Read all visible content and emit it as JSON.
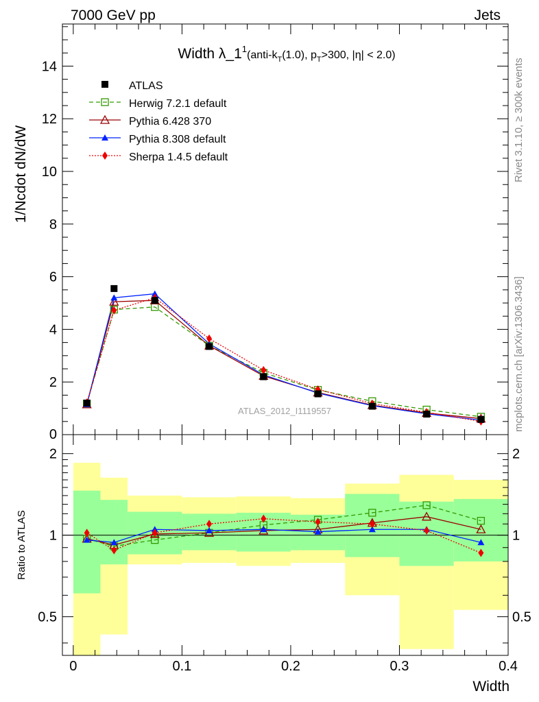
{
  "header": {
    "left": "7000 GeV pp",
    "right": "Jets"
  },
  "side_labels": {
    "rivet": "Rivet 3.1.10, ≥ 300k events",
    "mcplots": "mcplots.cern.ch [arXiv:1306.3436]"
  },
  "chart_data": {
    "type": "line",
    "title": {
      "main": "Width λ_1",
      "sup": "1",
      "paren_open": "(anti-k",
      "sub_t": "T",
      "jet_r": "(1.0), p",
      "sub_pt": "T",
      "cut": ">300, |η| < 2.0)"
    },
    "xlabel": "Width",
    "ylabel_main": "1/Ncdot dN/dW",
    "ylabel_ratio": "Ratio to ATLAS",
    "analysis_id": "ATLAS_2012_I1119557",
    "xlim": [
      -0.01,
      0.4
    ],
    "ylim_main": [
      0,
      15.6
    ],
    "ylim_ratio_log": [
      0.36,
      2.35
    ],
    "x_ticks": [
      0,
      0.1,
      0.2,
      0.3,
      0.4
    ],
    "x_tick_labels": [
      "0",
      "0.1",
      "0.2",
      "0.3",
      "0.4"
    ],
    "y_ticks_main": [
      2,
      4,
      6,
      8,
      10,
      12,
      14
    ],
    "y_tick_labels_main": [
      "2",
      "4",
      "6",
      "8",
      "10",
      "12",
      "14"
    ],
    "y_zero_label": "0",
    "y_ticks_ratio": [
      0.5,
      1,
      2
    ],
    "y_tick_labels_ratio": [
      "0.5",
      "1",
      "2"
    ],
    "bin_edges": [
      0,
      0.025,
      0.05,
      0.1,
      0.15,
      0.2,
      0.25,
      0.3,
      0.35,
      0.4
    ],
    "x": [
      0.0125,
      0.0375,
      0.075,
      0.125,
      0.175,
      0.225,
      0.275,
      0.325,
      0.375
    ],
    "reference": {
      "name": "ATLAS",
      "values": [
        1.2,
        5.55,
        5.1,
        3.35,
        2.2,
        1.55,
        1.08,
        0.78,
        0.58
      ],
      "band_inner": [
        [
          0.61,
          1.46
        ],
        [
          0.78,
          1.35
        ],
        [
          0.85,
          1.22
        ],
        [
          0.88,
          1.2
        ],
        [
          0.87,
          1.21
        ],
        [
          0.88,
          1.19
        ],
        [
          0.83,
          1.42
        ],
        [
          0.77,
          1.33
        ],
        [
          0.8,
          1.36
        ]
      ],
      "band_outer": [
        [
          0.36,
          1.85
        ],
        [
          0.43,
          1.63
        ],
        [
          0.78,
          1.4
        ],
        [
          0.79,
          1.38
        ],
        [
          0.77,
          1.39
        ],
        [
          0.79,
          1.37
        ],
        [
          0.6,
          1.55
        ],
        [
          0.38,
          1.67
        ],
        [
          0.53,
          1.6
        ]
      ]
    },
    "series": [
      {
        "name": "Herwig 7.2.1 default",
        "color": "#339900",
        "marker": "open-square",
        "dash": "6,4",
        "values": [
          1.18,
          4.75,
          4.85,
          3.38,
          2.35,
          1.7,
          1.27,
          0.95,
          0.68
        ],
        "ratio": [
          0.97,
          0.91,
          0.96,
          1.02,
          1.09,
          1.14,
          1.21,
          1.29,
          1.13
        ]
      },
      {
        "name": "Pythia 6.428 370",
        "color": "#990000",
        "marker": "open-triangle",
        "dash": "",
        "values": [
          1.15,
          5.05,
          5.1,
          3.38,
          2.23,
          1.6,
          1.12,
          0.82,
          0.61
        ],
        "ratio": [
          0.97,
          0.92,
          1.01,
          1.02,
          1.04,
          1.05,
          1.11,
          1.17,
          1.05
        ]
      },
      {
        "name": "Pythia 8.308 default",
        "color": "#0022ff",
        "marker": "filled-triangle",
        "dash": "",
        "values": [
          1.15,
          5.2,
          5.35,
          3.45,
          2.27,
          1.58,
          1.1,
          0.79,
          0.55
        ],
        "ratio": [
          0.96,
          0.94,
          1.05,
          1.04,
          1.05,
          1.03,
          1.05,
          1.05,
          0.94
        ]
      },
      {
        "name": "Sherpa 1.4.5 default",
        "color": "#ee0000",
        "marker": "filled-diamond",
        "dash": "2,2",
        "values": [
          1.22,
          4.72,
          5.2,
          3.65,
          2.45,
          1.72,
          1.18,
          0.85,
          0.5
        ],
        "ratio": [
          1.02,
          0.88,
          1.02,
          1.1,
          1.15,
          1.12,
          1.1,
          1.04,
          0.86
        ]
      }
    ]
  }
}
